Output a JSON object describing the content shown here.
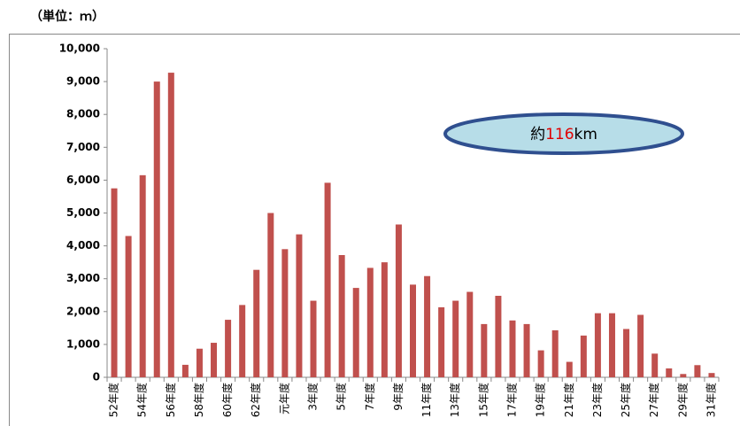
{
  "chart_data": {
    "type": "bar",
    "unit_label": "（単位：ｍ）",
    "annotation": [
      "約",
      "116",
      "km"
    ],
    "categories": [
      "52年度",
      null,
      "54年度",
      null,
      "56年度",
      null,
      "58年度",
      null,
      "60年度",
      null,
      "62年度",
      null,
      "元年度",
      null,
      "3年度",
      null,
      "5年度",
      null,
      "7年度",
      null,
      "9年度",
      null,
      "11年度",
      null,
      "13年度",
      null,
      "15年度",
      null,
      "17年度",
      null,
      "19年度",
      null,
      "21年度",
      null,
      "23年度",
      null,
      "25年度",
      null,
      "27年度",
      null,
      "29年度",
      null,
      "31年度"
    ],
    "values": [
      5750,
      4300,
      6150,
      9000,
      9270,
      380,
      870,
      1050,
      1750,
      2200,
      3270,
      5000,
      3900,
      4350,
      2330,
      5920,
      3720,
      2720,
      3330,
      3500,
      4650,
      2820,
      3080,
      2130,
      2330,
      2600,
      1620,
      2480,
      1730,
      1620,
      820,
      1430,
      470,
      1270,
      1950,
      1950,
      1470,
      1900,
      720,
      270,
      100,
      370,
      130
    ],
    "color": "#c0504d",
    "ylim": [
      0,
      10000
    ],
    "yticks": [
      0,
      {
        "value": 1000,
        "label": "1,000"
      },
      {
        "value": 2000,
        "label": "2,000"
      },
      {
        "value": 3000,
        "label": "3,000"
      },
      {
        "value": 4000,
        "label": "4,000"
      },
      {
        "value": 5000,
        "label": "5,000"
      },
      {
        "value": 6000,
        "label": "6,000"
      },
      {
        "value": 7000,
        "label": "7,000"
      },
      {
        "value": 8000,
        "label": "8,000"
      },
      {
        "value": 9000,
        "label": "9,000"
      },
      {
        "value": 10000,
        "label": "10,000"
      }
    ],
    "grid": false
  }
}
